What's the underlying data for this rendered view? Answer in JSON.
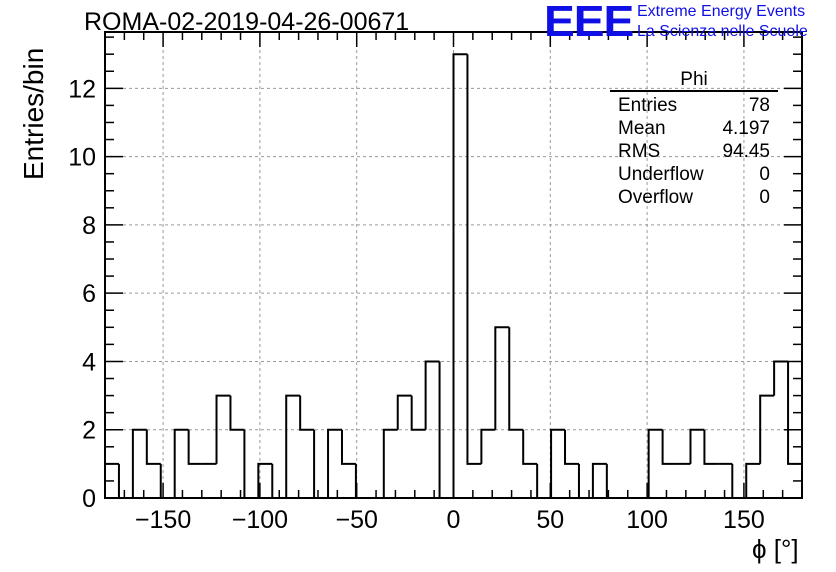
{
  "header": {
    "title": "ROMA-02-2019-04-26-00671",
    "logo_text": "EEE",
    "logo_line1": "Extreme Energy Events",
    "logo_line2": "La Scienza nelle Scuole"
  },
  "stats": {
    "title": "Phi",
    "rows": [
      {
        "label": "Entries",
        "value": "78"
      },
      {
        "label": "Mean",
        "value": "4.197"
      },
      {
        "label": "RMS",
        "value": "94.45"
      },
      {
        "label": "Underflow",
        "value": "0"
      },
      {
        "label": "Overflow",
        "value": "0"
      }
    ]
  },
  "chart_data": {
    "type": "bar",
    "subtype": "histogram-step",
    "title": "ROMA-02-2019-04-26-00671",
    "xlabel": "ϕ [°]",
    "ylabel": "Entries/bin",
    "xlim": [
      -180,
      180
    ],
    "ylim": [
      0,
      13.65
    ],
    "bin_width": 7.2,
    "x_ticks": [
      -150,
      -100,
      -50,
      0,
      50,
      100,
      150
    ],
    "y_ticks": [
      0,
      2,
      4,
      6,
      8,
      10,
      12
    ],
    "grid": true,
    "line_color": "#000000",
    "values": [
      1,
      0,
      2,
      1,
      0,
      2,
      1,
      1,
      3,
      2,
      0,
      1,
      0,
      3,
      2,
      0,
      2,
      1,
      0,
      0,
      2,
      3,
      2,
      4,
      0,
      13,
      1,
      2,
      5,
      2,
      1,
      0,
      2,
      1,
      0,
      1,
      0,
      0,
      0,
      2,
      1,
      1,
      2,
      1,
      1,
      0,
      1,
      3,
      4,
      1
    ]
  }
}
